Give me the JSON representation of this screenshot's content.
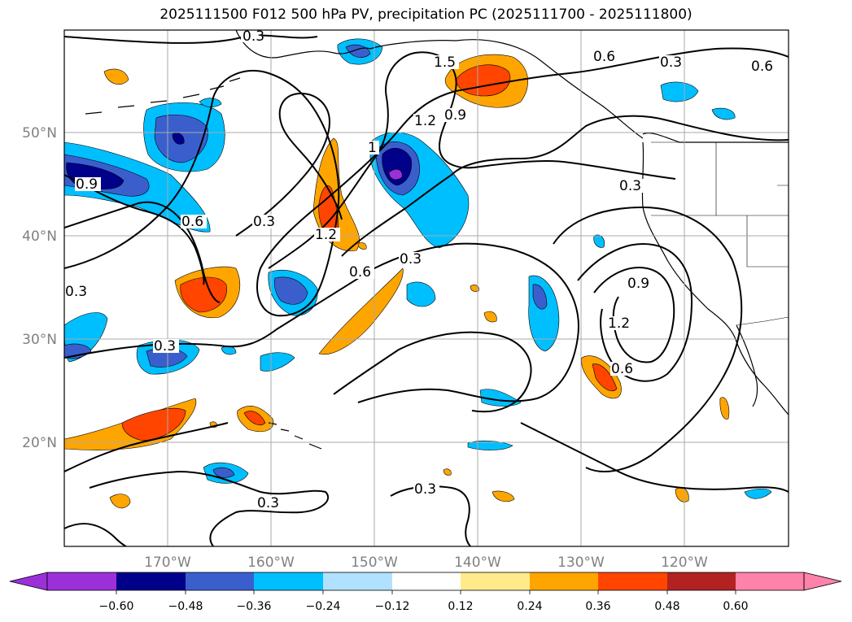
{
  "title": "2025111500 F012 500 hPa PV, precipitation PC (2025111700 - 2025111800)",
  "lat_labels": [
    "50°N",
    "40°N",
    "30°N",
    "20°N"
  ],
  "lon_labels": [
    "170°W",
    "160°W",
    "150°W",
    "140°W",
    "130°W",
    "120°W"
  ],
  "colorbar": {
    "ticks": [
      "−0.60",
      "−0.48",
      "−0.36",
      "−0.24",
      "−0.12",
      "0.12",
      "0.24",
      "0.36",
      "0.48",
      "0.60"
    ],
    "colors": [
      "#9b30d9",
      "#00008b",
      "#3a5fcd",
      "#00bfff",
      "#b0e2ff",
      "#ffffff",
      "#ffeb8a",
      "#ffa500",
      "#ff4500",
      "#b22222",
      "#ff82ab"
    ]
  },
  "contour_labels": [
    "0.3",
    "1.5",
    "0.6",
    "0.3",
    "0.6",
    "1.2",
    "0.9",
    "1",
    "0.9",
    "0.6",
    "0.3",
    "1.2",
    "0.3",
    "0.6",
    "0.3",
    "0.3",
    "0.3",
    "0.9",
    "1.2",
    "0.6",
    "0.3",
    "0.3"
  ],
  "colors": {
    "positive_low": "#ffa500",
    "positive_mid": "#ff4500",
    "negative_low": "#00bfff",
    "negative_mid": "#3a5fcd",
    "negative_high": "#00008b"
  }
}
